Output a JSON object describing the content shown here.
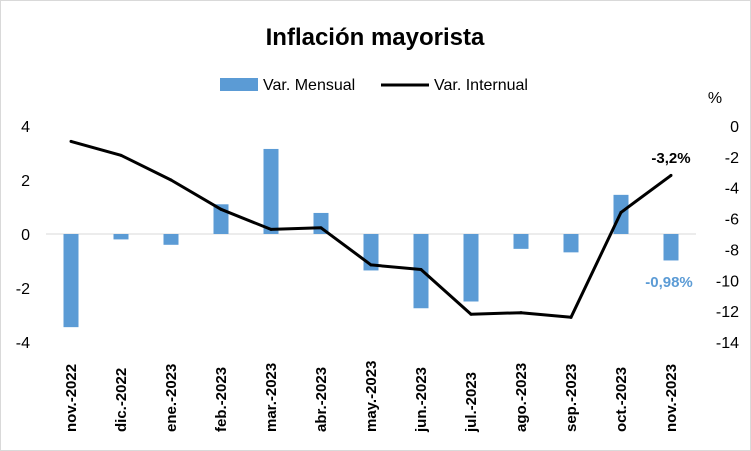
{
  "chart_data": {
    "type": "bar+line",
    "title": "Inflación mayorista",
    "categories": [
      "nov.-2022",
      "dic.-2022",
      "ene.-2023",
      "feb.-2023",
      "mar.-2023",
      "abr.-2023",
      "may.-2023",
      "jun.-2023",
      "jul.-2023",
      "ago.-2023",
      "sep.-2023",
      "oct.-2023",
      "nov.-2023"
    ],
    "series": [
      {
        "name": "Var. Mensual",
        "kind": "bar",
        "axis": "left",
        "color": "#5b9bd5",
        "values": [
          -3.45,
          -0.2,
          -0.4,
          1.1,
          3.15,
          0.78,
          -1.35,
          -2.75,
          -2.5,
          -0.55,
          -0.68,
          1.45,
          -0.98
        ]
      },
      {
        "name": "Var. Internual",
        "kind": "line",
        "axis": "right",
        "color": "#000000",
        "values": [
          -1.0,
          -1.9,
          -3.5,
          -5.4,
          -6.7,
          -6.6,
          -9.0,
          -9.3,
          -12.2,
          -12.1,
          -12.4,
          -5.6,
          -3.2
        ]
      }
    ],
    "left_axis": {
      "min": -4,
      "max": 4,
      "step": 2,
      "ticks": [
        "-4",
        "-2",
        "0",
        "2",
        "4"
      ]
    },
    "right_axis": {
      "min": -14,
      "max": 0,
      "step": 2,
      "ticks": [
        "-14",
        "-12",
        "-10",
        "-8",
        "-6",
        "-4",
        "-2",
        "0"
      ],
      "unit_label": "%"
    },
    "annotations": {
      "line_last": "-3,2%",
      "bar_last": "-0,98%"
    },
    "legend_position": "top-center",
    "grid": false
  }
}
